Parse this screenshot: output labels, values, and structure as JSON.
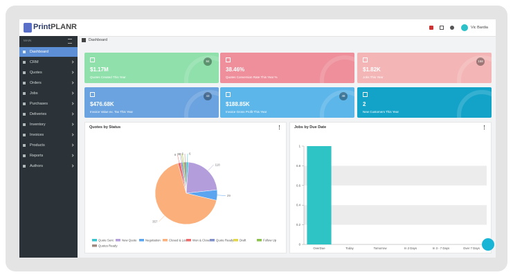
{
  "header": {
    "brand_prefix": "Print",
    "brand_suffix": "PLANR",
    "user": "Vic Bardia"
  },
  "sidebar": {
    "section": "MAIN",
    "items": [
      "Dashboard",
      "CRM",
      "Quotes",
      "Orders",
      "Jobs",
      "Purchases",
      "Deliveries",
      "Inventory",
      "Invoices",
      "Products",
      "Reports",
      "Authors"
    ],
    "active": 0
  },
  "breadcrumb": "Dashboard",
  "cards": [
    {
      "value": "$1.17M",
      "label": "Quotes Created This Year",
      "badge": "84",
      "color": "#8fe0ab"
    },
    {
      "value": "38.46%",
      "label": "Quotes Conversion Rate This Year %",
      "color": "#ee8f9b"
    },
    {
      "value": "$1.82K",
      "label": "Jobs This Year",
      "badge": "158",
      "color": "#f3b5b6"
    },
    {
      "value": "$476.68K",
      "label": "Invoice Value ex. Tax This Year",
      "badge": "43",
      "color": "#6aa3df"
    },
    {
      "value": "$188.85K",
      "label": "Invoice Gross Profit This Year",
      "badge": "48",
      "color": "#5cb6ea"
    },
    {
      "value": "2",
      "label": "New Customers This Year",
      "color": "#13a3c8"
    }
  ],
  "quotes_chart": {
    "type": "pie",
    "title": "Quotes by Status",
    "categories": [
      "Quote Sent",
      "New Quote",
      "Negotiation",
      "Closed & Lost",
      "Won & Closed",
      "Quote Ready",
      "Draft",
      "Follow Up",
      "Quotes Ready"
    ],
    "values": [
      6,
      118,
      29,
      357,
      8,
      5,
      0,
      4,
      6
    ],
    "colors": [
      "#36c5cf",
      "#b39ddb",
      "#5aa4f0",
      "#fbb07c",
      "#ef6b6b",
      "#7f8fc9",
      "#e2d64b",
      "#8bc34a",
      "#a1887f"
    ]
  },
  "jobs_chart": {
    "type": "bar",
    "title": "Jobs by Due Date",
    "categories": [
      "OverDue",
      "Today",
      "Tomorrow",
      "In 2 Days",
      "In 3 - 7 Days",
      "Over 7 Days"
    ],
    "values": [
      1,
      0,
      0,
      0,
      0,
      0
    ],
    "color": "#2ec4c6",
    "ylim": [
      0,
      1
    ],
    "yticks": [
      0,
      0.2,
      0.4,
      0.6,
      0.8,
      1
    ]
  }
}
